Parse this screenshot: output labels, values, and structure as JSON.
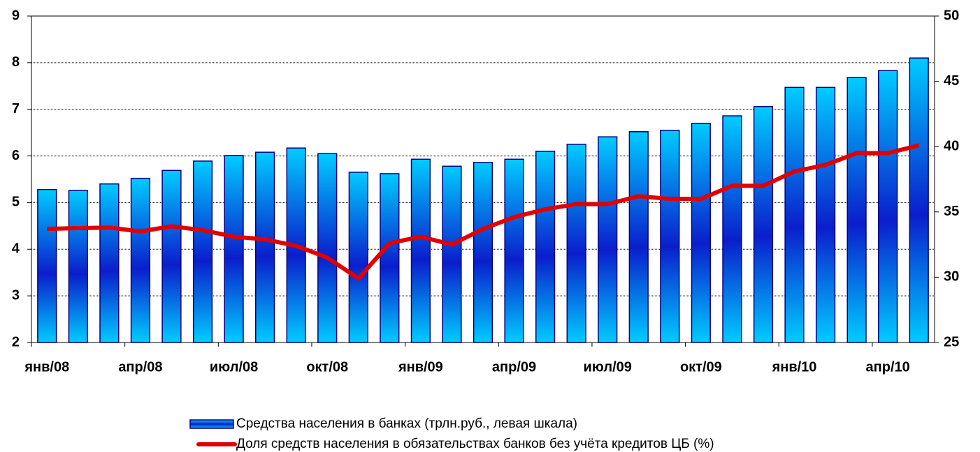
{
  "chart_data": {
    "type": "bar-line",
    "categories": [
      "янв/08",
      null,
      null,
      "апр/08",
      null,
      null,
      "июл/08",
      null,
      null,
      "окт/08",
      null,
      null,
      "янв/09",
      null,
      null,
      "апр/09",
      null,
      null,
      "июл/09",
      null,
      null,
      "окт/09",
      null,
      null,
      "янв/10",
      null,
      null,
      "апр/10",
      null
    ],
    "series": [
      {
        "name": "Средства населения в банках (трлн.руб., левая шкала)",
        "type": "bar",
        "color": "#00ccff",
        "values": [
          5.28,
          5.26,
          5.4,
          5.52,
          5.69,
          5.89,
          6.01,
          6.08,
          6.17,
          6.05,
          5.65,
          5.62,
          5.93,
          5.78,
          5.86,
          5.93,
          6.1,
          6.25,
          6.41,
          6.52,
          6.55,
          6.7,
          6.86,
          7.06,
          7.47,
          7.47,
          7.68,
          7.83,
          8.1
        ]
      },
      {
        "name": "Доля средств населения в обязательствах банков без учёта кредитов ЦБ (%)",
        "type": "line",
        "axis": "y2",
        "color": "#e00000",
        "values": [
          33.7,
          33.76,
          33.8,
          33.5,
          33.9,
          33.6,
          33.1,
          32.9,
          32.4,
          31.5,
          29.9,
          32.6,
          33.1,
          32.5,
          33.7,
          34.6,
          35.2,
          35.6,
          35.6,
          36.2,
          36.0,
          36.0,
          37.0,
          37.0,
          38.1,
          38.6,
          39.5,
          39.5,
          40.1
        ]
      }
    ],
    "ylim": [
      2,
      9
    ],
    "yticks": [
      2,
      3,
      4,
      5,
      6,
      7,
      8,
      9
    ],
    "y2lim": [
      25,
      50
    ],
    "y2ticks": [
      25,
      30,
      35,
      40,
      45,
      50
    ],
    "grid": true
  }
}
